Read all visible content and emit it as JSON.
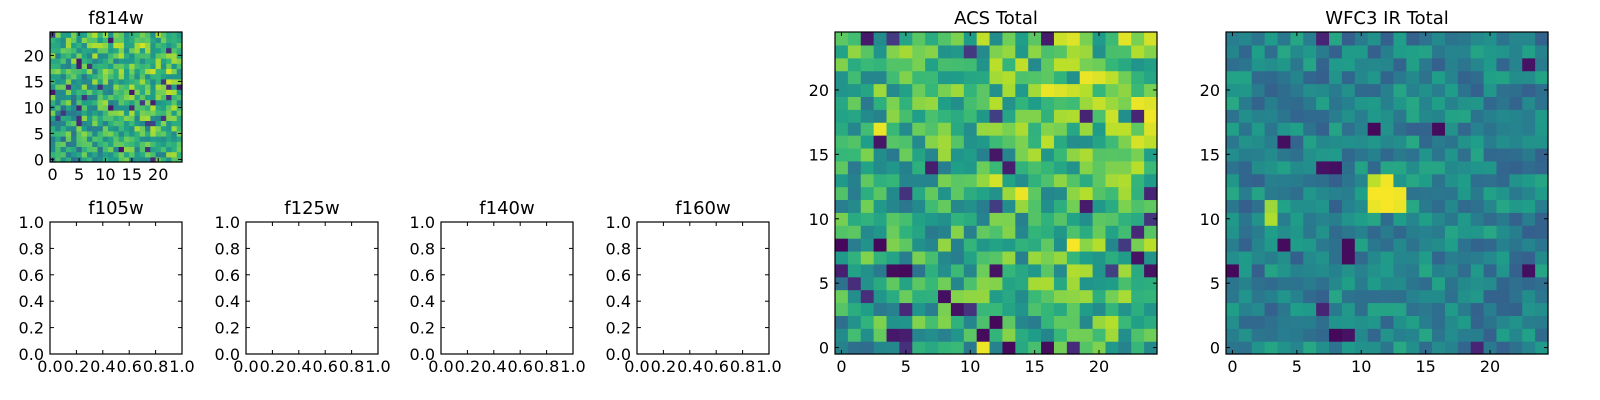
{
  "figure": {
    "background": "#ffffff",
    "colormap": "viridis"
  },
  "chart_data": [
    {
      "type": "heatmap",
      "title": "f814w",
      "grid": false,
      "xlim": [
        -0.5,
        24.5
      ],
      "ylim": [
        -0.5,
        24.5
      ],
      "xticks": [
        0,
        5,
        10,
        15,
        20
      ],
      "yticks": [
        0,
        5,
        10,
        15,
        20
      ],
      "xtick_labels": [
        "0",
        "5",
        "10",
        "15",
        "20"
      ],
      "ytick_labels": [
        "0",
        "5",
        "10",
        "15",
        "20"
      ],
      "rows_from_bottom": true,
      "value_scale": "normalized 0-1 (no colorbar shown)",
      "seed": 3,
      "hotspot": []
    },
    {
      "type": "empty",
      "title": "f105w",
      "xlim": [
        0,
        1
      ],
      "ylim": [
        0,
        1
      ],
      "xticks": [
        0,
        0.2,
        0.4,
        0.6,
        0.8,
        1.0
      ],
      "yticks": [
        0,
        0.2,
        0.4,
        0.6,
        0.8,
        1.0
      ],
      "xtick_labels": [
        "0.0",
        "0.2",
        "0.4",
        "0.6",
        "0.8",
        "1.0"
      ],
      "ytick_labels": [
        "0.0",
        "0.2",
        "0.4",
        "0.6",
        "0.8",
        "1.0"
      ]
    },
    {
      "type": "empty",
      "title": "f125w",
      "xlim": [
        0,
        1
      ],
      "ylim": [
        0,
        1
      ],
      "xticks": [
        0,
        0.2,
        0.4,
        0.6,
        0.8,
        1.0
      ],
      "yticks": [
        0,
        0.2,
        0.4,
        0.6,
        0.8,
        1.0
      ],
      "xtick_labels": [
        "0.0",
        "0.2",
        "0.4",
        "0.6",
        "0.8",
        "1.0"
      ],
      "ytick_labels": [
        "0.0",
        "0.2",
        "0.4",
        "0.6",
        "0.8",
        "1.0"
      ]
    },
    {
      "type": "empty",
      "title": "f140w",
      "xlim": [
        0,
        1
      ],
      "ylim": [
        0,
        1
      ],
      "xticks": [
        0,
        0.2,
        0.4,
        0.6,
        0.8,
        1.0
      ],
      "yticks": [
        0,
        0.2,
        0.4,
        0.6,
        0.8,
        1.0
      ],
      "xtick_labels": [
        "0.0",
        "0.2",
        "0.4",
        "0.6",
        "0.8",
        "1.0"
      ],
      "ytick_labels": [
        "0.0",
        "0.2",
        "0.4",
        "0.6",
        "0.8",
        "1.0"
      ]
    },
    {
      "type": "empty",
      "title": "f160w",
      "xlim": [
        0,
        1
      ],
      "ylim": [
        0,
        1
      ],
      "xticks": [
        0,
        0.2,
        0.4,
        0.6,
        0.8,
        1.0
      ],
      "yticks": [
        0,
        0.2,
        0.4,
        0.6,
        0.8,
        1.0
      ],
      "xtick_labels": [
        "0.0",
        "0.2",
        "0.4",
        "0.6",
        "0.8",
        "1.0"
      ],
      "ytick_labels": [
        "0.0",
        "0.2",
        "0.4",
        "0.6",
        "0.8",
        "1.0"
      ]
    },
    {
      "type": "heatmap",
      "title": "ACS Total",
      "grid": false,
      "xlim": [
        -0.5,
        24.5
      ],
      "ylim": [
        -0.5,
        24.5
      ],
      "xticks": [
        0,
        5,
        10,
        15,
        20
      ],
      "yticks": [
        0,
        5,
        10,
        15,
        20
      ],
      "xtick_labels": [
        "0",
        "5",
        "10",
        "15",
        "20"
      ],
      "ytick_labels": [
        "0",
        "5",
        "10",
        "15",
        "20"
      ],
      "rows_from_bottom": true,
      "value_scale": "normalized 0-1 (no colorbar shown)",
      "seed": 3,
      "hotspot": [
        [
          24,
          17,
          0.92
        ],
        [
          24,
          18,
          0.95
        ],
        [
          23,
          19,
          0.85
        ],
        [
          22,
          17,
          0.9
        ],
        [
          21,
          19,
          0.97
        ],
        [
          21,
          20,
          0.95
        ],
        [
          20,
          15,
          0.86
        ],
        [
          20,
          16,
          0.97
        ],
        [
          20,
          17,
          0.95
        ],
        [
          20,
          18,
          0.92
        ],
        [
          19,
          23,
          0.97
        ],
        [
          19,
          24,
          0.95
        ],
        [
          18,
          18,
          0.88
        ],
        [
          18,
          24,
          0.98
        ],
        [
          17,
          3,
          0.97
        ],
        [
          17,
          22,
          0.9
        ],
        [
          13,
          12,
          0.94
        ],
        [
          12,
          14,
          0.97
        ],
        [
          8,
          18,
          0.99
        ],
        [
          0,
          11,
          0.97
        ],
        [
          2,
          3,
          0.8
        ],
        [
          8,
          0,
          0.02
        ],
        [
          8,
          3,
          0.02
        ],
        [
          6,
          4,
          0.03
        ],
        [
          6,
          5,
          0.02
        ],
        [
          6,
          12,
          0.05
        ],
        [
          4,
          8,
          0.04
        ],
        [
          3,
          9,
          0.05
        ],
        [
          1,
          11,
          0.03
        ],
        [
          0,
          13,
          0.02
        ],
        [
          0,
          16,
          0.03
        ],
        [
          2,
          12,
          0.02
        ],
        [
          14,
          13,
          0.08
        ],
        [
          16,
          3,
          0.06
        ],
        [
          12,
          24,
          0.1
        ],
        [
          7,
          23,
          0.05
        ],
        [
          6,
          24,
          0.05
        ]
      ]
    },
    {
      "type": "heatmap",
      "title": "WFC3 IR Total",
      "grid": false,
      "xlim": [
        -0.5,
        24.5
      ],
      "ylim": [
        -0.5,
        24.5
      ],
      "xticks": [
        0,
        5,
        10,
        15,
        20
      ],
      "yticks": [
        0,
        5,
        10,
        15,
        20
      ],
      "xtick_labels": [
        "0",
        "5",
        "10",
        "15",
        "20"
      ],
      "ytick_labels": [
        "0",
        "5",
        "10",
        "15",
        "20"
      ],
      "rows_from_bottom": true,
      "value_scale": "normalized 0-1 (no colorbar shown)",
      "seed": 41,
      "hotspot": [
        [
          13,
          11,
          0.9
        ],
        [
          13,
          12,
          0.98
        ],
        [
          12,
          11,
          0.99
        ],
        [
          12,
          12,
          0.99
        ],
        [
          12,
          13,
          0.98
        ],
        [
          11,
          11,
          0.97
        ],
        [
          11,
          12,
          0.99
        ],
        [
          11,
          13,
          0.97
        ],
        [
          10,
          3,
          0.88
        ],
        [
          11,
          3,
          0.85
        ],
        [
          17,
          11,
          0.02
        ],
        [
          17,
          16,
          0.03
        ],
        [
          16,
          4,
          0.04
        ],
        [
          14,
          7,
          0.05
        ],
        [
          14,
          8,
          0.04
        ],
        [
          8,
          4,
          0.03
        ],
        [
          8,
          9,
          0.03
        ],
        [
          7,
          9,
          0.03
        ],
        [
          6,
          0,
          0.02
        ],
        [
          6,
          23,
          0.04
        ],
        [
          1,
          8,
          0.02
        ],
        [
          1,
          9,
          0.05
        ],
        [
          22,
          23,
          0.05
        ],
        [
          24,
          7,
          0.1
        ],
        [
          0,
          19,
          0.1
        ],
        [
          3,
          7,
          0.1
        ]
      ]
    }
  ]
}
